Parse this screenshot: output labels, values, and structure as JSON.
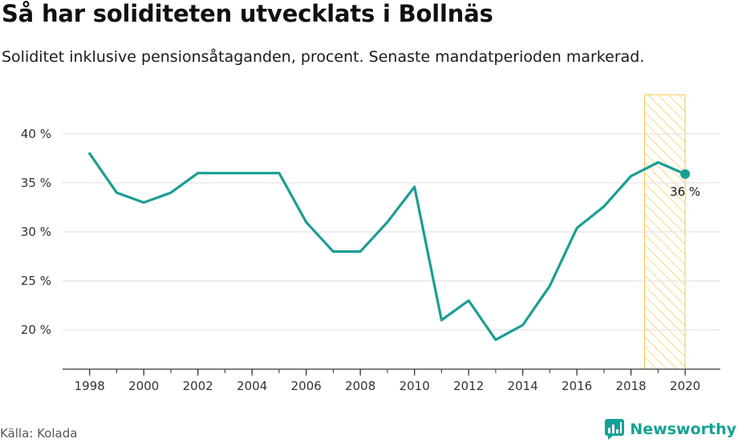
{
  "title": "Så har soliditeten utvecklats i Bollnäs",
  "subtitle": "Soliditet inklusive pensionsåtaganden, procent. Senaste mandatperioden markerad.",
  "source": "Källa: Kolada",
  "brand": {
    "name": "Newsworthy",
    "icon": "newsworthy-logo-icon",
    "color": "#16a196"
  },
  "colors": {
    "line": "#1a9e94",
    "highlight": "#f6c445",
    "grid": "#dddddd",
    "axis": "#333333"
  },
  "chart_data": {
    "type": "line",
    "title": "Så har soliditeten utvecklats i Bollnäs",
    "xlabel": "",
    "ylabel": "",
    "x": [
      1998,
      1999,
      2000,
      2001,
      2002,
      2003,
      2004,
      2005,
      2006,
      2007,
      2008,
      2009,
      2010,
      2011,
      2012,
      2013,
      2014,
      2015,
      2016,
      2017,
      2018,
      2019,
      2020
    ],
    "series": [
      {
        "name": "",
        "values": [
          38,
          34,
          33,
          34,
          36,
          36,
          36,
          36,
          31,
          28,
          28,
          31,
          34.6,
          21,
          23,
          19,
          20.5,
          24.5,
          30.4,
          32.6,
          35.7,
          37.1,
          35.9
        ]
      }
    ],
    "xlim": [
      1997,
      2021.3
    ],
    "ylim": [
      16,
      44
    ],
    "yticks": [
      20,
      25,
      30,
      35,
      40
    ],
    "ytick_labels": [
      "20 %",
      "25 %",
      "30 %",
      "35 %",
      "40 %"
    ],
    "xticks": [
      1998,
      2000,
      2002,
      2004,
      2006,
      2008,
      2010,
      2012,
      2014,
      2016,
      2018,
      2020
    ],
    "xtick_labels": [
      "1998",
      "2000",
      "2002",
      "2004",
      "2006",
      "2008",
      "2010",
      "2012",
      "2014",
      "2016",
      "2018",
      "2020"
    ],
    "highlight_period": [
      2018.5,
      2020
    ],
    "endpoint_label": "36 %",
    "grid": true
  }
}
